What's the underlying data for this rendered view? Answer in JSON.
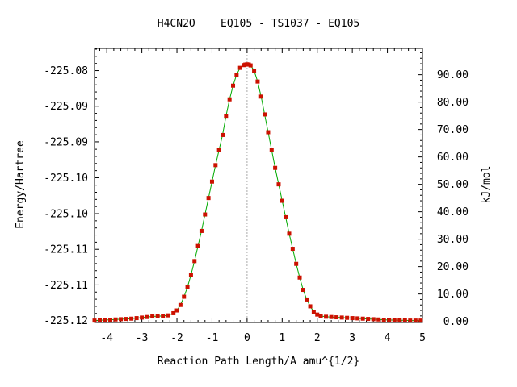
{
  "title": "H4CN2O    EQ105 - TS1037 - EQ105",
  "chart_data": {
    "type": "line",
    "title": "H4CN2O    EQ105 - TS1037 - EQ105",
    "xlabel": "Reaction Path Length/A amu^{1/2}",
    "ylabel_left": "Energy/Hartree",
    "ylabel_right": "kJ/mol",
    "xlim": [
      -4.35,
      5.0
    ],
    "ylim_kjmol": [
      -0.4,
      99.6
    ],
    "x_ticks": [
      -4,
      -3,
      -2,
      -1,
      0,
      1,
      2,
      3,
      4,
      5
    ],
    "x_tick_labels": [
      "-4",
      "-3",
      "-2",
      "-1",
      "0",
      "1",
      "2",
      "3",
      "4",
      "5"
    ],
    "left_ticks_kjmol": [
      0.3,
      13.3,
      26.3,
      39.3,
      52.4,
      65.5,
      78.5,
      91.5
    ],
    "left_tick_labels": [
      "-225.12",
      "-225.11",
      "-225.11",
      "-225.10",
      "-225.10",
      "-225.09",
      "-225.09",
      "-225.08"
    ],
    "right_ticks_kjmol": [
      0,
      10,
      20,
      30,
      40,
      50,
      60,
      70,
      80,
      90
    ],
    "right_tick_labels": [
      "0.00",
      "10.00",
      "20.00",
      "30.00",
      "40.00",
      "50.00",
      "60.00",
      "70.00",
      "80.00",
      "90.00"
    ],
    "ts_marker_x": 0,
    "series": [
      {
        "color": "#00aa00",
        "marker_color": "#cc1100",
        "x": [
          -4.35,
          -4.2,
          -4.05,
          -3.9,
          -3.75,
          -3.6,
          -3.45,
          -3.3,
          -3.15,
          -3.0,
          -2.85,
          -2.7,
          -2.55,
          -2.4,
          -2.25,
          -2.1,
          -2.0,
          -1.9,
          -1.8,
          -1.7,
          -1.6,
          -1.5,
          -1.4,
          -1.3,
          -1.2,
          -1.1,
          -1.0,
          -0.9,
          -0.8,
          -0.7,
          -0.6,
          -0.5,
          -0.4,
          -0.3,
          -0.2,
          -0.1,
          -0.05,
          0.0,
          0.05,
          0.1,
          0.2,
          0.3,
          0.4,
          0.5,
          0.6,
          0.7,
          0.8,
          0.9,
          1.0,
          1.1,
          1.2,
          1.3,
          1.4,
          1.5,
          1.6,
          1.7,
          1.8,
          1.9,
          2.0,
          2.1,
          2.25,
          2.4,
          2.55,
          2.7,
          2.85,
          3.0,
          3.15,
          3.3,
          3.45,
          3.6,
          3.75,
          3.9,
          4.05,
          4.2,
          4.35,
          4.5,
          4.65,
          4.8,
          4.95
        ],
        "y": [
          0.3,
          0.4,
          0.5,
          0.6,
          0.7,
          0.8,
          0.9,
          1.0,
          1.2,
          1.4,
          1.6,
          1.8,
          1.9,
          2.0,
          2.2,
          3.0,
          4.0,
          6.0,
          9.0,
          12.5,
          17.0,
          22.0,
          27.5,
          33.0,
          39.0,
          45.0,
          51.0,
          57.0,
          62.5,
          68.0,
          75.0,
          81.0,
          86.0,
          90.0,
          92.5,
          93.5,
          93.7,
          93.8,
          93.7,
          93.4,
          91.5,
          87.5,
          82.0,
          75.5,
          69.0,
          62.5,
          56.0,
          50.0,
          44.0,
          38.0,
          32.0,
          26.5,
          21.0,
          16.0,
          11.5,
          8.0,
          5.5,
          3.5,
          2.5,
          2.0,
          1.7,
          1.6,
          1.5,
          1.4,
          1.3,
          1.2,
          1.1,
          1.0,
          0.9,
          0.8,
          0.7,
          0.6,
          0.5,
          0.5,
          0.4,
          0.4,
          0.3,
          0.3,
          0.3
        ]
      }
    ]
  }
}
